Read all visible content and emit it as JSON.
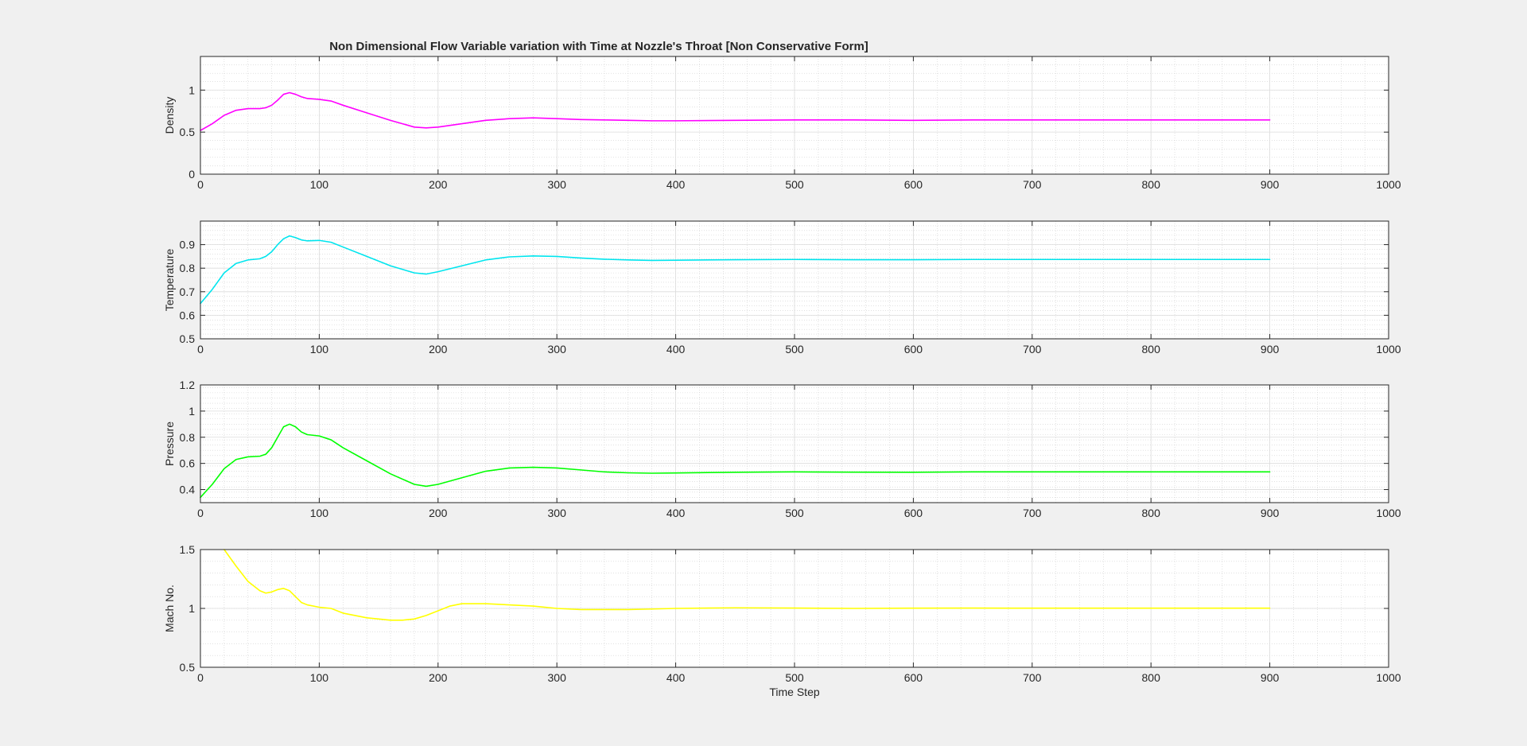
{
  "figure": {
    "title": "Non Dimensional Flow Variable variation with Time at Nozzle's Throat [Non Conservative Form]",
    "background": "#f0f0f0",
    "axes_background": "#ffffff"
  },
  "chart_data": [
    {
      "type": "line",
      "xlim": [
        0,
        1000
      ],
      "ylim": [
        0,
        1.4
      ],
      "xticks": [
        0,
        100,
        200,
        300,
        400,
        500,
        600,
        700,
        800,
        900,
        1000
      ],
      "yticks": [
        0,
        0.5,
        1
      ],
      "ylabel": "Density",
      "xlabel": "",
      "grid": "on (major and minor)",
      "series": [
        {
          "color": "#ff00ff",
          "x": [
            0,
            10,
            20,
            30,
            40,
            50,
            55,
            60,
            65,
            70,
            75,
            80,
            85,
            90,
            100,
            110,
            120,
            140,
            160,
            180,
            190,
            200,
            220,
            240,
            260,
            280,
            300,
            320,
            340,
            360,
            380,
            400,
            450,
            500,
            550,
            600,
            650,
            700,
            750,
            800,
            850,
            900
          ],
          "y": [
            0.52,
            0.6,
            0.7,
            0.76,
            0.78,
            0.78,
            0.79,
            0.82,
            0.88,
            0.95,
            0.97,
            0.95,
            0.92,
            0.9,
            0.89,
            0.87,
            0.82,
            0.73,
            0.64,
            0.56,
            0.55,
            0.56,
            0.6,
            0.64,
            0.66,
            0.67,
            0.66,
            0.65,
            0.645,
            0.64,
            0.635,
            0.635,
            0.64,
            0.645,
            0.645,
            0.64,
            0.645,
            0.645,
            0.645,
            0.645,
            0.645,
            0.645
          ]
        }
      ]
    },
    {
      "type": "line",
      "xlim": [
        0,
        1000
      ],
      "ylim": [
        0.5,
        1.0
      ],
      "xticks": [
        0,
        100,
        200,
        300,
        400,
        500,
        600,
        700,
        800,
        900,
        1000
      ],
      "yticks": [
        0.5,
        0.6,
        0.7,
        0.8,
        0.9
      ],
      "ylabel": "Temperature",
      "xlabel": "",
      "grid": "on (major and minor)",
      "series": [
        {
          "color": "#00e5ee",
          "x": [
            0,
            10,
            20,
            30,
            40,
            50,
            55,
            60,
            65,
            70,
            75,
            80,
            85,
            90,
            100,
            110,
            120,
            140,
            160,
            180,
            190,
            200,
            220,
            240,
            260,
            280,
            300,
            320,
            340,
            360,
            380,
            400,
            450,
            500,
            550,
            600,
            650,
            700,
            750,
            800,
            850,
            900
          ],
          "y": [
            0.65,
            0.71,
            0.78,
            0.82,
            0.835,
            0.84,
            0.85,
            0.87,
            0.9,
            0.925,
            0.937,
            0.93,
            0.92,
            0.916,
            0.918,
            0.91,
            0.89,
            0.85,
            0.81,
            0.78,
            0.775,
            0.785,
            0.81,
            0.835,
            0.848,
            0.852,
            0.85,
            0.843,
            0.838,
            0.835,
            0.833,
            0.834,
            0.836,
            0.837,
            0.836,
            0.836,
            0.837,
            0.837,
            0.837,
            0.837,
            0.837,
            0.837
          ]
        }
      ]
    },
    {
      "type": "line",
      "xlim": [
        0,
        1000
      ],
      "ylim": [
        0.3,
        1.2
      ],
      "xticks": [
        0,
        100,
        200,
        300,
        400,
        500,
        600,
        700,
        800,
        900,
        1000
      ],
      "yticks": [
        0.4,
        0.6,
        0.8,
        1,
        1.2
      ],
      "ylabel": "Pressure",
      "xlabel": "",
      "grid": "on (major and minor)",
      "series": [
        {
          "color": "#00ff00",
          "x": [
            0,
            10,
            20,
            30,
            40,
            50,
            55,
            60,
            65,
            70,
            75,
            80,
            85,
            90,
            100,
            110,
            120,
            140,
            160,
            180,
            190,
            200,
            220,
            240,
            260,
            280,
            300,
            320,
            340,
            360,
            380,
            400,
            450,
            500,
            550,
            600,
            650,
            700,
            750,
            800,
            850,
            900
          ],
          "y": [
            0.34,
            0.44,
            0.56,
            0.63,
            0.65,
            0.655,
            0.67,
            0.72,
            0.8,
            0.88,
            0.9,
            0.88,
            0.84,
            0.82,
            0.81,
            0.78,
            0.72,
            0.62,
            0.52,
            0.44,
            0.425,
            0.44,
            0.49,
            0.54,
            0.565,
            0.57,
            0.565,
            0.55,
            0.535,
            0.528,
            0.525,
            0.527,
            0.532,
            0.535,
            0.533,
            0.532,
            0.535,
            0.535,
            0.535,
            0.535,
            0.535,
            0.535
          ]
        }
      ]
    },
    {
      "type": "line",
      "xlim": [
        0,
        1000
      ],
      "ylim": [
        0.5,
        1.5
      ],
      "xticks": [
        0,
        100,
        200,
        300,
        400,
        500,
        600,
        700,
        800,
        900,
        1000
      ],
      "yticks": [
        0.5,
        1,
        1.5
      ],
      "ylabel": "Mach No.",
      "xlabel": "Time Step",
      "grid": "on (major and minor)",
      "series": [
        {
          "color": "#ffff00",
          "x": [
            20,
            30,
            40,
            50,
            55,
            60,
            65,
            70,
            75,
            80,
            85,
            90,
            100,
            110,
            120,
            140,
            160,
            170,
            180,
            190,
            200,
            210,
            220,
            240,
            260,
            280,
            300,
            320,
            340,
            360,
            380,
            400,
            450,
            500,
            550,
            600,
            650,
            700,
            750,
            800,
            850,
            900
          ],
          "y": [
            1.5,
            1.36,
            1.23,
            1.15,
            1.13,
            1.14,
            1.16,
            1.17,
            1.15,
            1.1,
            1.05,
            1.03,
            1.01,
            1.0,
            0.96,
            0.92,
            0.9,
            0.9,
            0.91,
            0.94,
            0.98,
            1.02,
            1.04,
            1.04,
            1.03,
            1.02,
            1.0,
            0.99,
            0.99,
            0.99,
            0.995,
            1.0,
            1.005,
            1.003,
            1.0,
            1.002,
            1.003,
            1.002,
            1.002,
            1.002,
            1.002,
            1.002
          ]
        }
      ]
    }
  ]
}
